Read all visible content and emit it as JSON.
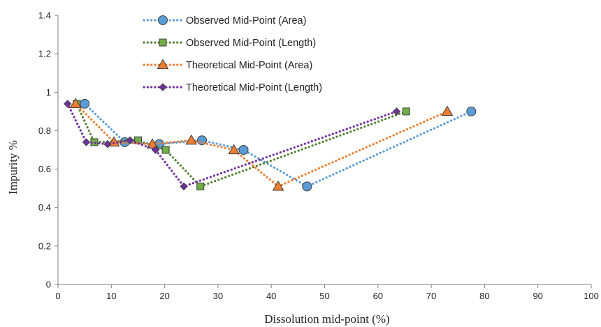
{
  "chart_data": {
    "type": "scatter",
    "title": "",
    "xlabel": "Dissolution mid-point (%)",
    "ylabel": "Impurity %",
    "xlim": [
      0,
      100
    ],
    "ylim": [
      0,
      1.4
    ],
    "x_ticks": [
      0,
      10,
      20,
      30,
      40,
      50,
      60,
      70,
      80,
      90,
      100
    ],
    "y_ticks": [
      {
        "value": 0,
        "label": "0"
      },
      {
        "value": 0.2,
        "label": "0.2"
      },
      {
        "value": 0.4,
        "label": "0.4"
      },
      {
        "value": 0.6,
        "label": "0.6"
      },
      {
        "value": 0.8,
        "label": "0.8"
      },
      {
        "value": 1.0,
        "label": "1"
      },
      {
        "value": 1.2,
        "label": "1.2"
      },
      {
        "value": 1.4,
        "label": "1.4"
      }
    ],
    "grid": false,
    "legend_position": "top-center",
    "line_style": "dotted",
    "series": [
      {
        "name": "Observed Mid-Point (Area)",
        "marker": "circle",
        "color": "#5B9BD5",
        "marker_fill": "#5B9BD5",
        "x": [
          5.0,
          12.5,
          19.0,
          27.0,
          34.8,
          46.7,
          77.5
        ],
        "y": [
          0.94,
          0.74,
          0.73,
          0.75,
          0.7,
          0.51,
          0.9
        ]
      },
      {
        "name": "Observed Mid-Point (Length)",
        "marker": "square",
        "color": "#548235",
        "marker_fill": "#70AD47",
        "x": [
          3.5,
          6.8,
          15.0,
          20.2,
          26.7,
          65.3
        ],
        "y": [
          0.94,
          0.74,
          0.75,
          0.7,
          0.51,
          0.9
        ]
      },
      {
        "name": "Theoretical Mid-Point (Area)",
        "marker": "triangle",
        "color": "#ED7D31",
        "marker_fill": "#ED7D31",
        "x": [
          3.3,
          10.5,
          17.7,
          25.0,
          33.0,
          41.3,
          73.0
        ],
        "y": [
          0.94,
          0.74,
          0.73,
          0.75,
          0.7,
          0.51,
          0.9
        ]
      },
      {
        "name": "Theoretical Mid-Point (Length)",
        "marker": "diamond",
        "color": "#7030A0",
        "marker_fill": "#7030A0",
        "x": [
          1.8,
          5.3,
          9.3,
          13.5,
          18.3,
          23.6,
          63.5
        ],
        "y": [
          0.94,
          0.74,
          0.73,
          0.75,
          0.7,
          0.51,
          0.9
        ]
      }
    ]
  }
}
